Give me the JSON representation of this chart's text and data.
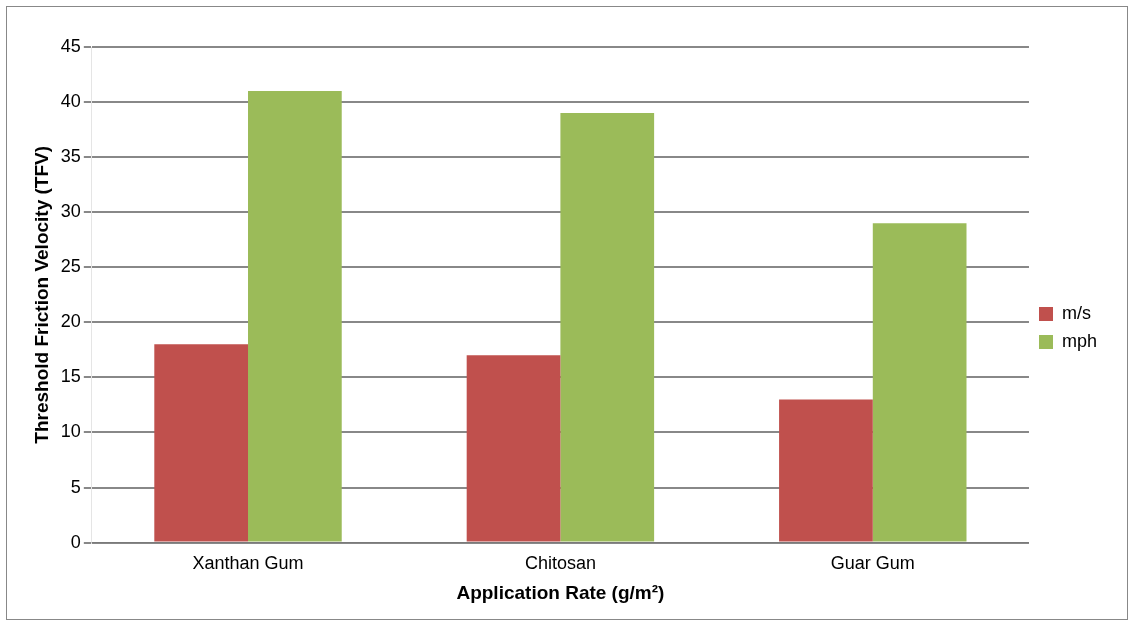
{
  "chart_data": {
    "type": "bar",
    "xlabel": "Application Rate (g/m²)",
    "ylabel": "Threshold Friction Velocity (TFV)",
    "categories": [
      "Xanthan Gum",
      "Chitosan",
      "Guar Gum"
    ],
    "series": [
      {
        "name": "m/s",
        "color": "#c0504d",
        "values": [
          18,
          17,
          13
        ]
      },
      {
        "name": "mph",
        "color": "#9bbb59",
        "values": [
          41,
          39,
          29
        ]
      }
    ],
    "ylim": [
      0,
      45
    ],
    "yticks": [
      0,
      5,
      10,
      15,
      20,
      25,
      30,
      35,
      40,
      45
    ],
    "grid": "y",
    "legend": "right"
  }
}
